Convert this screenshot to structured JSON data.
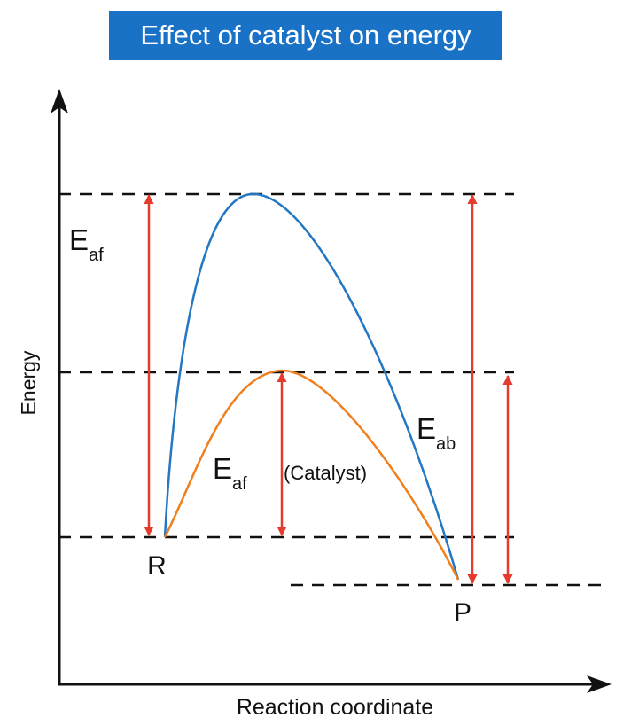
{
  "title": "Effect of catalyst on energy",
  "axes": {
    "x_label": "Reaction coordinate",
    "y_label": "Energy"
  },
  "points": {
    "reactant": "R",
    "product": "P"
  },
  "labels": {
    "uncatalyzed_forward": {
      "main": "E",
      "sub": "af"
    },
    "catalyzed_forward": {
      "main": "E",
      "sub": "af"
    },
    "catalyst_note": "(Catalyst)",
    "backward": {
      "main": "E",
      "sub": "ab"
    }
  },
  "colors": {
    "title_bg": "#1a72c6",
    "uncatalyzed_curve": "#2377c3",
    "catalyzed_curve": "#f07f1e",
    "arrows": "#e53a2c",
    "axes": "#111111"
  }
}
